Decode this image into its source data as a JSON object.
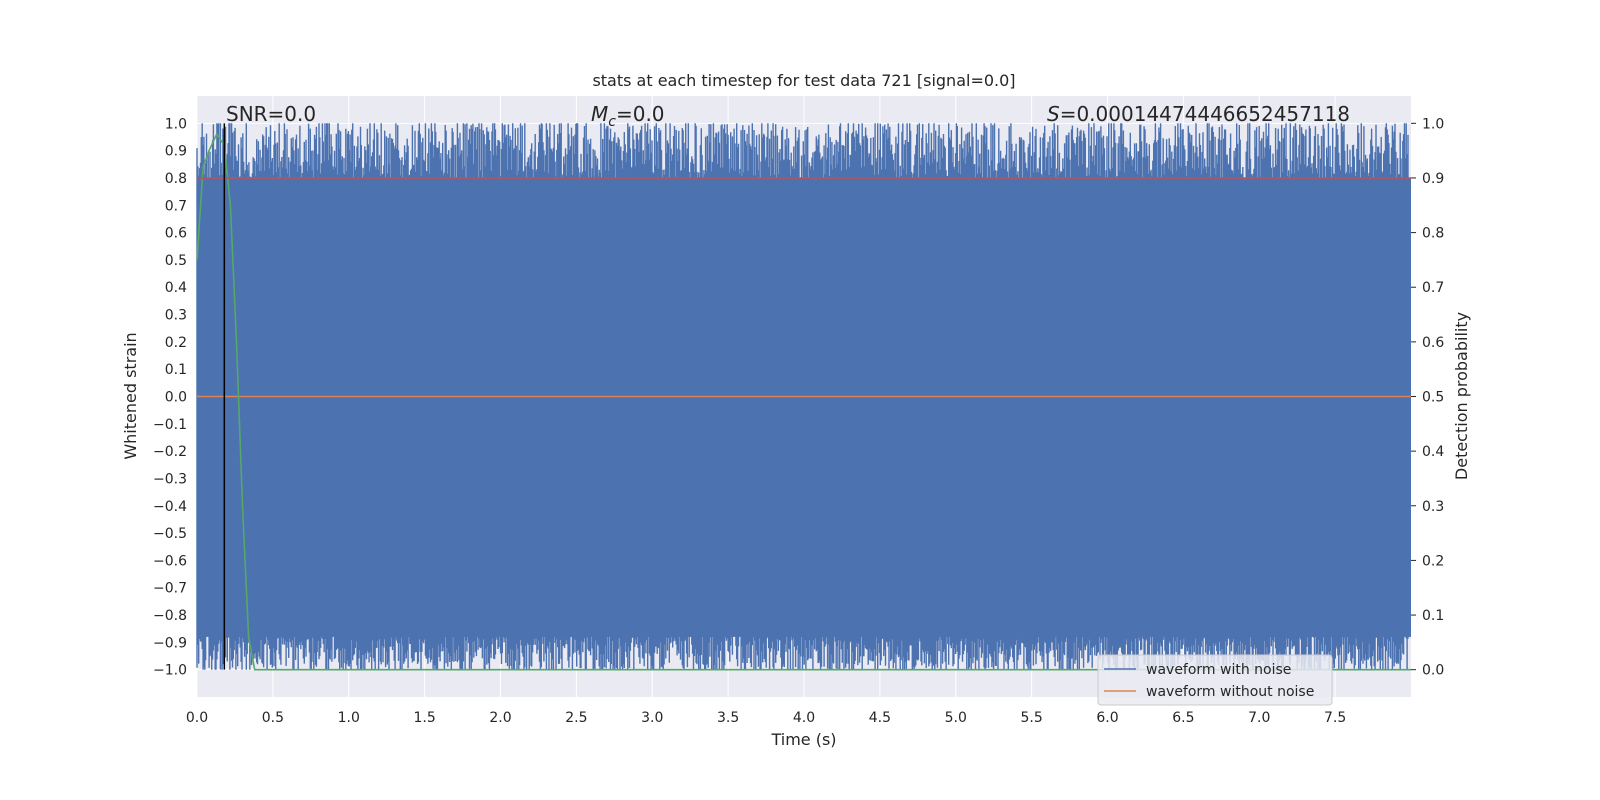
{
  "chart_data": {
    "type": "line",
    "title": "stats at each timestep for test data 721 [signal=0.0]",
    "xlabel": "Time (s)",
    "ylabel": "Whitened strain",
    "y2label": "Detection probability",
    "xlim": [
      0.0,
      8.0
    ],
    "ylim": [
      -1.1,
      1.1
    ],
    "y2lim": [
      -0.05,
      1.05
    ],
    "xticks": [
      "0.0",
      "0.5",
      "1.0",
      "1.5",
      "2.0",
      "2.5",
      "3.0",
      "3.5",
      "4.0",
      "4.5",
      "5.0",
      "5.5",
      "6.0",
      "6.5",
      "7.0",
      "7.5"
    ],
    "yticks": [
      "1.0",
      "0.9",
      "0.8",
      "0.7",
      "0.6",
      "0.5",
      "0.4",
      "0.3",
      "0.2",
      "0.1",
      "0.0",
      "−0.1",
      "−0.2",
      "−0.3",
      "−0.4",
      "−0.5",
      "−0.6",
      "−0.7",
      "−0.8",
      "−0.9",
      "−1.0"
    ],
    "y2ticks": [
      "1.0",
      "0.9",
      "0.8",
      "0.7",
      "0.6",
      "0.5",
      "0.4",
      "0.3",
      "0.2",
      "0.1",
      "0.0"
    ],
    "annotations": {
      "snr": "SNR=0.0",
      "mc_symbol": "M",
      "mc_sub": "c",
      "mc_value": "=0.0",
      "s_symbol": "S",
      "s_value": "=0.00014474446652457118"
    },
    "legend": {
      "position": "lower right",
      "items": [
        "waveform with noise",
        "waveform without noise"
      ]
    },
    "series": [
      {
        "name": "waveform with noise",
        "color": "#4c72b0",
        "axis": "left",
        "envelope": {
          "upper_typical": 0.8,
          "lower_typical": -0.88,
          "min": -1.0,
          "max": 1.0
        }
      },
      {
        "name": "waveform without noise",
        "color": "#dd8452",
        "axis": "left",
        "x": [
          0.0,
          8.0
        ],
        "y": [
          0.0,
          0.0
        ]
      },
      {
        "color": "#55a868",
        "axis": "right",
        "x": [
          0.0,
          0.04,
          0.08,
          0.13,
          0.18,
          0.22,
          0.26,
          0.3,
          0.34,
          0.38,
          8.0
        ],
        "y": [
          0.75,
          0.92,
          0.95,
          0.98,
          0.96,
          0.85,
          0.6,
          0.3,
          0.06,
          0.0,
          0.0
        ]
      },
      {
        "color": "#c44e52",
        "axis": "right",
        "x": [
          0.0,
          8.0
        ],
        "y": [
          0.9,
          0.9
        ]
      },
      {
        "color": "#000000",
        "axis": "vline",
        "x": [
          0.18,
          0.18
        ],
        "y": [
          -1.0,
          1.0
        ]
      }
    ]
  }
}
